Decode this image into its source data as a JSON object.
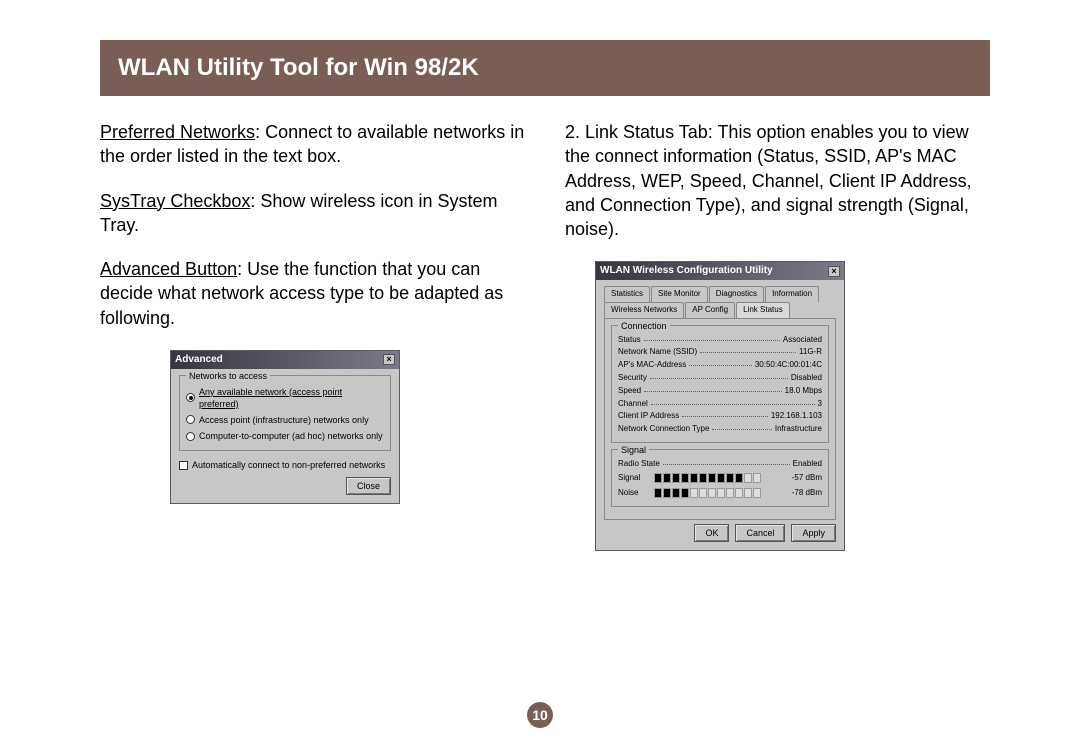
{
  "title": "WLAN Utility Tool for Win 98/2K",
  "page_number": "10",
  "colors": {
    "title_bg": "#7a5e56",
    "title_fg": "#ffffff",
    "dlg_bg": "#c7c7c7"
  },
  "left": {
    "p1_label": "Preferred Networks",
    "p1_rest": ": Connect to available networks in the order listed in the text box.",
    "p2_label": "SysTray Checkbox",
    "p2_rest": ": Show wireless icon in System Tray.",
    "p3_label": "Advanced Button",
    "p3_rest": ": Use the function that you can decide what network access type to be adapted as following."
  },
  "right": {
    "p1": "2. Link Status Tab: This option enables you to view the connect information (Status, SSID, AP's MAC Address, WEP, Speed, Channel, Client IP Address, and Connection Type), and signal strength (Signal, noise)."
  },
  "adv": {
    "title": "Advanced",
    "group": "Networks to access",
    "opt1": "Any available network (access point preferred)",
    "opt2": "Access point (infrastructure) networks only",
    "opt3": "Computer-to-computer (ad hoc) networks only",
    "auto": "Automatically connect to non-preferred networks",
    "close": "Close"
  },
  "wlan": {
    "title": "WLAN Wireless Configuration Utility",
    "tabs_row1": [
      "Statistics",
      "Site Monitor",
      "Diagnostics",
      "Information"
    ],
    "tabs_row2": [
      "Wireless Networks",
      "AP Config",
      "Link Status"
    ],
    "conn_legend": "Connection",
    "rows": [
      {
        "k": "Status",
        "v": "Associated"
      },
      {
        "k": "Network Name (SSID)",
        "v": "11G-R"
      },
      {
        "k": "AP's MAC-Address",
        "v": "30:50:4C:00:01:4C"
      },
      {
        "k": "Security",
        "v": "Disabled"
      },
      {
        "k": "Speed",
        "v": "18.0 Mbps"
      },
      {
        "k": "Channel",
        "v": "3"
      },
      {
        "k": "Client IP Address",
        "v": "192.168.1.103"
      },
      {
        "k": "Network Connection Type",
        "v": "Infrastructure"
      }
    ],
    "signal_legend": "Signal",
    "radio_state_k": "Radio State",
    "radio_state_v": "Enabled",
    "signal_k": "Signal",
    "signal_v": "-57 dBm",
    "signal_filled": 10,
    "signal_total": 12,
    "noise_k": "Noise",
    "noise_v": "-78 dBm",
    "noise_filled": 4,
    "noise_total": 12,
    "ok": "OK",
    "cancel": "Cancel",
    "apply": "Apply"
  }
}
